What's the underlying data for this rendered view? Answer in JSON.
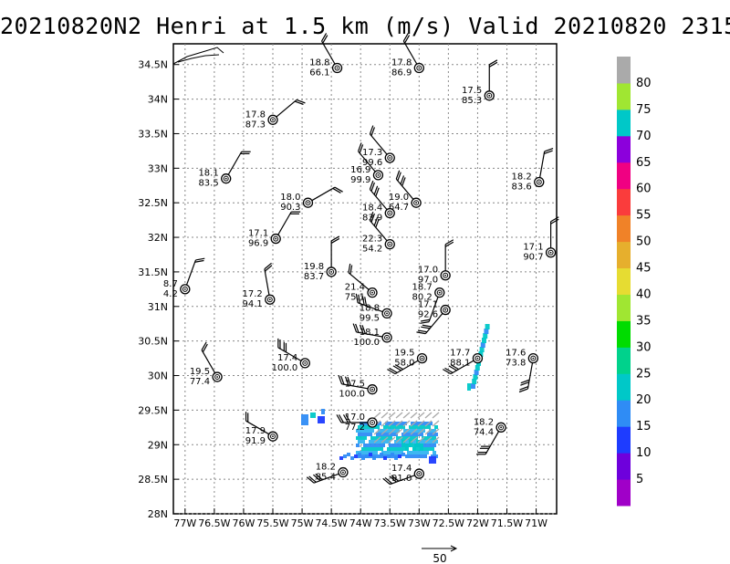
{
  "chart_data": {
    "type": "scatter",
    "title": "20210820N2 Henri at 1.5 km (m/s) Valid 20210820 2315Z",
    "x_ticks": [
      "77W",
      "76.5W",
      "76W",
      "75.5W",
      "75W",
      "74.5W",
      "74W",
      "73.5W",
      "73W",
      "72.5W",
      "72W",
      "71.5W",
      "71W"
    ],
    "y_ticks": [
      "34.5N",
      "34N",
      "33.5N",
      "33N",
      "32.5N",
      "32N",
      "31.5N",
      "31N",
      "30.5N",
      "30N",
      "29.5N",
      "29N",
      "28.5N",
      "28N"
    ],
    "xlim": [
      -77.2,
      -70.65
    ],
    "ylim": [
      28.0,
      34.8
    ],
    "grid": true,
    "reference_vector": {
      "label": "50"
    },
    "colorbar": {
      "labels": [
        "5",
        "10",
        "15",
        "20",
        "25",
        "30",
        "35",
        "40",
        "45",
        "50",
        "55",
        "60",
        "65",
        "70",
        "75",
        "80"
      ],
      "colors": [
        "#a000c8",
        "#6e00dc",
        "#1e3cff",
        "#2f8cf5",
        "#00c8c8",
        "#00d28c",
        "#00dc00",
        "#a0e632",
        "#e6dc32",
        "#e6af2d",
        "#f08228",
        "#fa3c3c",
        "#f00082",
        "#8c00dc",
        "#00c8c8",
        "#a0e632",
        "#aaaaaa"
      ]
    },
    "stations": [
      {
        "lon": -74.4,
        "lat": 34.45,
        "top": "18.8",
        "bottom": "66.1",
        "dir": 330,
        "flags": 1
      },
      {
        "lon": -73.0,
        "lat": 34.45,
        "top": "17.8",
        "bottom": "86.9",
        "dir": 330,
        "flags": 1
      },
      {
        "lon": -71.8,
        "lat": 34.05,
        "top": "17.5",
        "bottom": "85.3",
        "dir": 0,
        "flags": 1
      },
      {
        "lon": -75.5,
        "lat": 33.7,
        "top": "17.8",
        "bottom": "87.3",
        "dir": 50,
        "flags": 1
      },
      {
        "lon": -73.5,
        "lat": 33.15,
        "top": "17.3",
        "bottom": "99.6",
        "dir": 320,
        "flags": 1
      },
      {
        "lon": -76.3,
        "lat": 32.85,
        "top": "18.1",
        "bottom": "83.5",
        "dir": 30,
        "flags": 1
      },
      {
        "lon": -73.7,
        "lat": 32.9,
        "top": "16.9",
        "bottom": "99.9",
        "dir": 320,
        "flags": 1
      },
      {
        "lon": -70.95,
        "lat": 32.8,
        "top": "18.2",
        "bottom": "83.6",
        "dir": 10,
        "flags": 1
      },
      {
        "lon": -74.9,
        "lat": 32.5,
        "top": "18.0",
        "bottom": "90.3",
        "dir": 60,
        "flags": 1
      },
      {
        "lon": -73.05,
        "lat": 32.5,
        "top": "19.0",
        "bottom": "64.7",
        "dir": 320,
        "flags": 2
      },
      {
        "lon": -73.5,
        "lat": 32.35,
        "top": "18.4",
        "bottom": "83.9",
        "dir": 320,
        "flags": 2
      },
      {
        "lon": -75.45,
        "lat": 31.98,
        "top": "17.1",
        "bottom": "96.9",
        "dir": 30,
        "flags": 1
      },
      {
        "lon": -73.5,
        "lat": 31.9,
        "top": "22.3",
        "bottom": "54.2",
        "dir": 320,
        "flags": 2
      },
      {
        "lon": -70.75,
        "lat": 31.78,
        "top": "17.1",
        "bottom": "90.7",
        "dir": 0,
        "flags": 1
      },
      {
        "lon": -74.5,
        "lat": 31.5,
        "top": "19.8",
        "bottom": "83.7",
        "dir": 0,
        "flags": 1
      },
      {
        "lon": -72.55,
        "lat": 31.45,
        "top": "17.0",
        "bottom": "97.0",
        "dir": 0,
        "flags": 1
      },
      {
        "lon": -77.0,
        "lat": 31.25,
        "top": "8.7",
        "bottom": "4.2",
        "dir": 20,
        "flags": 1
      },
      {
        "lon": -75.55,
        "lat": 31.1,
        "top": "17.2",
        "bottom": "94.1",
        "dir": 350,
        "flags": 1
      },
      {
        "lon": -73.8,
        "lat": 31.2,
        "top": "21.4",
        "bottom": "75.1",
        "dir": 310,
        "flags": 1
      },
      {
        "lon": -72.65,
        "lat": 31.2,
        "top": "18.7",
        "bottom": "80.2",
        "dir": 200,
        "flags": 1
      },
      {
        "lon": -72.55,
        "lat": 30.95,
        "top": "17.1",
        "bottom": "92.6",
        "dir": 220,
        "flags": 2
      },
      {
        "lon": -73.55,
        "lat": 30.9,
        "top": "18.8",
        "bottom": "99.5",
        "dir": 290,
        "flags": 2
      },
      {
        "lon": -73.55,
        "lat": 30.55,
        "top": "18.1",
        "bottom": "100.0",
        "dir": 280,
        "flags": 2
      },
      {
        "lon": -72.95,
        "lat": 30.25,
        "top": "19.5",
        "bottom": "58.0",
        "dir": 240,
        "flags": 2
      },
      {
        "lon": -72.0,
        "lat": 30.25,
        "top": "17.7",
        "bottom": "88.1",
        "dir": 240,
        "flags": 2
      },
      {
        "lon": -71.05,
        "lat": 30.25,
        "top": "17.6",
        "bottom": "73.8",
        "dir": 190,
        "flags": 2
      },
      {
        "lon": -74.95,
        "lat": 30.18,
        "top": "17.4",
        "bottom": "100.0",
        "dir": 300,
        "flags": 2
      },
      {
        "lon": -76.45,
        "lat": 29.98,
        "top": "19.5",
        "bottom": "77.4",
        "dir": 330,
        "flags": 1
      },
      {
        "lon": -73.8,
        "lat": 29.8,
        "top": "17.5",
        "bottom": "100.0",
        "dir": 280,
        "flags": 2
      },
      {
        "lon": -73.8,
        "lat": 29.32,
        "top": "17.0",
        "bottom": "77.2",
        "dir": 270,
        "flags": 2
      },
      {
        "lon": -71.6,
        "lat": 29.25,
        "top": "18.2",
        "bottom": "74.4",
        "dir": 210,
        "flags": 2
      },
      {
        "lon": -75.5,
        "lat": 29.12,
        "top": "17.9",
        "bottom": "91.9",
        "dir": 300,
        "flags": 1
      },
      {
        "lon": -74.3,
        "lat": 28.6,
        "top": "18.2",
        "bottom": "85.4",
        "dir": 250,
        "flags": 2
      },
      {
        "lon": -73.0,
        "lat": 28.58,
        "top": "17.4",
        "bottom": "91.0",
        "dir": 250,
        "flags": 2
      }
    ]
  }
}
